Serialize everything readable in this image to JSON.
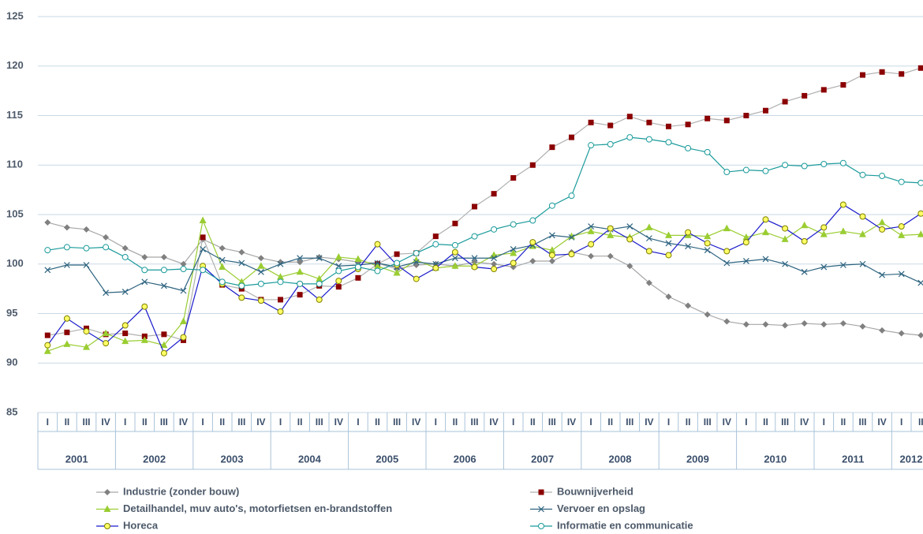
{
  "chart_data": {
    "type": "line",
    "categories": [
      "I",
      "II",
      "III",
      "IV",
      "I",
      "II",
      "III",
      "IV",
      "I",
      "II",
      "III",
      "IV",
      "I",
      "II",
      "III",
      "IV",
      "I",
      "II",
      "III",
      "IV",
      "I",
      "II",
      "III",
      "IV",
      "I",
      "II",
      "III",
      "IV",
      "I",
      "II",
      "III",
      "IV",
      "I",
      "II",
      "III",
      "IV",
      "I",
      "II",
      "III",
      "IV",
      "I",
      "II",
      "III",
      "IV",
      "I",
      "II"
    ],
    "years": [
      "2001",
      "2002",
      "2003",
      "2004",
      "2005",
      "2006",
      "2007",
      "2008",
      "2009",
      "2010",
      "2011",
      "2012"
    ],
    "ylim": [
      85,
      125
    ],
    "yticks": [
      85,
      90,
      95,
      100,
      105,
      110,
      115,
      120,
      125
    ],
    "grid": true,
    "series": [
      {
        "name": "Industrie (zonder bouw)",
        "color": "#a6a6a6",
        "marker": "diamond",
        "marker_color": "#808080",
        "values": [
          104.2,
          103.7,
          103.5,
          102.7,
          101.6,
          100.7,
          100.7,
          100.0,
          102.5,
          101.6,
          101.2,
          100.6,
          100.2,
          100.2,
          100.7,
          100.5,
          100.2,
          100.1,
          99.5,
          99.9,
          100.0,
          99.8,
          100.2,
          100.0,
          99.7,
          100.3,
          100.3,
          101.2,
          100.8,
          100.8,
          99.8,
          98.1,
          96.7,
          95.8,
          94.9,
          94.2,
          93.9,
          93.9,
          93.8,
          94.0,
          93.9,
          94.0,
          93.7,
          93.3,
          93.0,
          92.8
        ]
      },
      {
        "name": "Bouwnijverheid",
        "color": "#b0b0b0",
        "marker": "square",
        "marker_color": "#8b0000",
        "values": [
          92.8,
          93.1,
          93.5,
          92.9,
          93.0,
          92.7,
          92.9,
          92.3,
          102.7,
          97.9,
          97.5,
          96.4,
          96.4,
          96.9,
          97.8,
          97.7,
          98.6,
          100.0,
          101.0,
          101.1,
          102.8,
          104.1,
          105.8,
          107.1,
          108.7,
          110.0,
          111.8,
          112.8,
          114.3,
          114.0,
          114.9,
          114.3,
          113.9,
          114.1,
          114.7,
          114.5,
          115.0,
          115.5,
          116.4,
          117.0,
          117.6,
          118.1,
          119.1,
          119.4,
          119.2,
          119.8
        ]
      },
      {
        "name": "Detailhandel, muv auto's, motorfietsen en-brandstoffen",
        "color": "#9acd32",
        "marker": "triangle",
        "marker_color": "#9acd32",
        "values": [
          91.2,
          91.9,
          91.6,
          93.0,
          92.2,
          92.3,
          91.8,
          94.2,
          104.4,
          99.7,
          98.2,
          99.8,
          98.7,
          99.2,
          98.5,
          100.7,
          100.5,
          99.8,
          99.1,
          100.4,
          99.6,
          99.8,
          99.8,
          100.9,
          101.1,
          101.8,
          101.4,
          102.8,
          103.3,
          102.9,
          102.7,
          103.7,
          102.9,
          102.9,
          102.8,
          103.6,
          102.7,
          103.2,
          102.5,
          103.9,
          103.0,
          103.3,
          103.0,
          104.2,
          102.9,
          103.0
        ]
      },
      {
        "name": "Vervoer en opslag",
        "color": "#2e6480",
        "marker": "cross",
        "marker_color": "#2e6480",
        "values": [
          99.4,
          99.9,
          99.9,
          97.1,
          97.2,
          98.2,
          97.8,
          97.3,
          101.5,
          100.4,
          100.1,
          99.2,
          100.0,
          100.6,
          100.6,
          99.8,
          99.9,
          100.1,
          99.7,
          100.2,
          100.0,
          100.6,
          100.6,
          100.6,
          101.5,
          101.9,
          102.9,
          102.7,
          103.8,
          103.5,
          103.8,
          102.6,
          102.1,
          101.8,
          101.4,
          100.1,
          100.3,
          100.5,
          100.0,
          99.2,
          99.7,
          99.9,
          100.0,
          98.9,
          99.0,
          98.1
        ]
      },
      {
        "name": "Horeca",
        "color": "#1a1acc",
        "marker": "circle",
        "marker_color": "#ffff66",
        "values": [
          91.8,
          94.5,
          93.2,
          92.0,
          93.8,
          95.7,
          91.0,
          92.6,
          99.8,
          98.0,
          96.6,
          96.3,
          95.2,
          98.0,
          96.4,
          98.3,
          99.5,
          102.0,
          99.9,
          98.5,
          99.6,
          101.2,
          99.7,
          99.5,
          100.1,
          102.2,
          100.9,
          101.0,
          102.0,
          103.6,
          102.5,
          101.3,
          100.9,
          103.2,
          102.1,
          101.3,
          102.2,
          104.5,
          103.6,
          102.3,
          103.7,
          106.0,
          104.8,
          103.5,
          103.8,
          105.1
        ]
      },
      {
        "name": "Informatie en communicatie",
        "color": "#1a9a9a",
        "marker": "circle",
        "marker_color": "#ffffff",
        "values": [
          101.4,
          101.7,
          101.6,
          101.7,
          100.7,
          99.4,
          99.4,
          99.5,
          99.4,
          98.2,
          97.8,
          98.0,
          98.2,
          98.0,
          98.0,
          99.3,
          99.7,
          99.3,
          100.1,
          101.1,
          102.0,
          101.9,
          102.8,
          103.5,
          104.0,
          104.4,
          105.9,
          106.9,
          112.0,
          112.1,
          112.8,
          112.6,
          112.3,
          111.7,
          111.3,
          109.3,
          109.5,
          109.4,
          110.0,
          109.9,
          110.1,
          110.2,
          109.0,
          108.9,
          108.3,
          108.2
        ]
      }
    ]
  }
}
